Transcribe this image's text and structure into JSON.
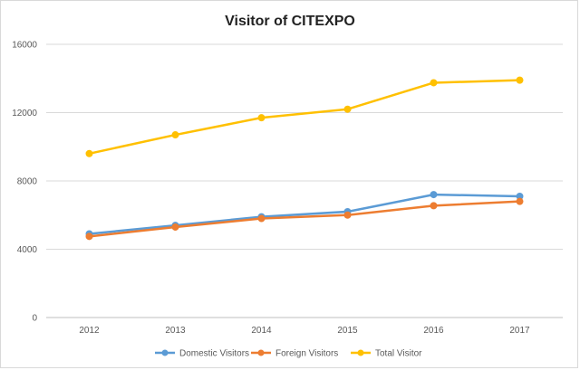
{
  "chart_data": {
    "type": "line",
    "title": "Visitor of CITEXPO",
    "xlabel": "",
    "ylabel": "",
    "categories": [
      "2012",
      "2013",
      "2014",
      "2015",
      "2016",
      "2017"
    ],
    "ylim": [
      0,
      16000
    ],
    "yticks": [
      0,
      4000,
      8000,
      12000,
      16000
    ],
    "grid": true,
    "legend_position": "bottom",
    "series": [
      {
        "name": "Domestic Visitors",
        "color": "#5b9bd5",
        "values": [
          4900,
          5400,
          5900,
          6200,
          7200,
          7100
        ]
      },
      {
        "name": "Foreign Visitors",
        "color": "#ed7d31",
        "values": [
          4750,
          5300,
          5800,
          6000,
          6550,
          6800
        ]
      },
      {
        "name": "Total Visitor",
        "color": "#ffc000",
        "values": [
          9600,
          10700,
          11700,
          12200,
          13750,
          13900
        ]
      }
    ]
  }
}
